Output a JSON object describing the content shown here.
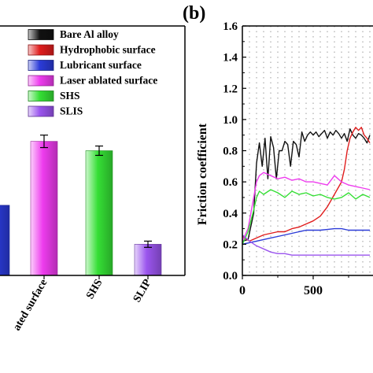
{
  "panel_label": "(b)",
  "chart_data": [
    {
      "type": "bar",
      "title": "",
      "xlabel": "",
      "ylabel": "",
      "categories": [
        "Lubricant surface",
        "Laser ablated surface",
        "SHS",
        "SLIP"
      ],
      "category_tick_labels": [
        "",
        "ated surface",
        "SHS",
        "SLIP"
      ],
      "values": [
        0.45,
        0.86,
        0.8,
        0.2
      ],
      "errors": [
        0,
        0.04,
        0.03,
        0.02
      ],
      "bar_colors": [
        "#2b3bd8",
        "#ee3cee",
        "#35df35",
        "#9b55ee"
      ],
      "ylim": [
        0,
        1.6
      ],
      "legend": {
        "placement": "top-right",
        "entries": [
          {
            "name": "Bare Al alloy",
            "color": "#111111"
          },
          {
            "name": "Hydrophobic surface",
            "color": "#e01d1d"
          },
          {
            "name": "Lubricant surface",
            "color": "#2b3bd8"
          },
          {
            "name": "Laser ablated surface",
            "color": "#ee3cee"
          },
          {
            "name": "SHS",
            "color": "#35df35"
          },
          {
            "name": "SLIS",
            "color": "#9b55ee"
          }
        ]
      }
    },
    {
      "type": "line",
      "title": "",
      "xlabel": "",
      "ylabel": "Friction coefficient",
      "xlim": [
        0,
        900
      ],
      "ylim": [
        0,
        1.6
      ],
      "xticks": [
        0,
        500
      ],
      "yticks": [
        0.0,
        0.2,
        0.4,
        0.6,
        0.8,
        1.0,
        1.2,
        1.4,
        1.6
      ],
      "grid": "vertical dotted",
      "series": [
        {
          "name": "Bare Al alloy",
          "color": "#111111",
          "x": [
            0,
            40,
            80,
            100,
            120,
            140,
            160,
            180,
            200,
            220,
            240,
            260,
            280,
            300,
            320,
            340,
            360,
            380,
            400,
            420,
            440,
            460,
            480,
            500,
            520,
            540,
            560,
            580,
            600,
            620,
            640,
            660,
            680,
            700,
            720,
            740,
            760,
            780,
            800,
            820,
            840,
            860,
            880,
            900
          ],
          "y": [
            0.22,
            0.23,
            0.4,
            0.72,
            0.85,
            0.7,
            0.88,
            0.62,
            0.89,
            0.82,
            0.62,
            0.8,
            0.8,
            0.86,
            0.84,
            0.7,
            0.86,
            0.84,
            0.76,
            0.92,
            0.86,
            0.9,
            0.92,
            0.9,
            0.92,
            0.89,
            0.91,
            0.93,
            0.88,
            0.92,
            0.9,
            0.93,
            0.91,
            0.88,
            0.91,
            0.86,
            0.94,
            0.9,
            0.88,
            0.91,
            0.9,
            0.88,
            0.85,
            0.9
          ]
        },
        {
          "name": "Hydrophobic surface",
          "color": "#e01d1d",
          "x": [
            0,
            50,
            100,
            150,
            200,
            250,
            300,
            350,
            400,
            450,
            500,
            550,
            600,
            650,
            700,
            720,
            740,
            760,
            780,
            800,
            820,
            840,
            860,
            880,
            900
          ],
          "y": [
            0.25,
            0.22,
            0.24,
            0.26,
            0.27,
            0.28,
            0.28,
            0.3,
            0.31,
            0.33,
            0.35,
            0.38,
            0.44,
            0.52,
            0.6,
            0.68,
            0.8,
            0.88,
            0.92,
            0.95,
            0.93,
            0.95,
            0.9,
            0.88,
            0.85
          ]
        },
        {
          "name": "Lubricant surface",
          "color": "#2b3bd8",
          "x": [
            0,
            50,
            100,
            150,
            200,
            250,
            300,
            350,
            400,
            450,
            500,
            550,
            600,
            650,
            700,
            750,
            800,
            850,
            900
          ],
          "y": [
            0.2,
            0.21,
            0.22,
            0.23,
            0.24,
            0.25,
            0.26,
            0.27,
            0.28,
            0.29,
            0.29,
            0.29,
            0.295,
            0.3,
            0.3,
            0.29,
            0.29,
            0.29,
            0.29
          ]
        },
        {
          "name": "Laser ablated surface",
          "color": "#ee3cee",
          "x": [
            0,
            40,
            80,
            100,
            120,
            150,
            200,
            250,
            300,
            350,
            400,
            450,
            500,
            550,
            600,
            650,
            700,
            750,
            800,
            850,
            900
          ],
          "y": [
            0.22,
            0.3,
            0.5,
            0.6,
            0.64,
            0.66,
            0.64,
            0.62,
            0.63,
            0.61,
            0.62,
            0.6,
            0.6,
            0.59,
            0.58,
            0.64,
            0.6,
            0.58,
            0.57,
            0.56,
            0.55
          ]
        },
        {
          "name": "SHS",
          "color": "#35df35",
          "x": [
            0,
            40,
            80,
            100,
            120,
            150,
            200,
            250,
            300,
            350,
            400,
            450,
            500,
            550,
            600,
            650,
            700,
            750,
            800,
            850,
            900
          ],
          "y": [
            0.2,
            0.28,
            0.42,
            0.5,
            0.54,
            0.52,
            0.55,
            0.53,
            0.5,
            0.54,
            0.52,
            0.53,
            0.51,
            0.52,
            0.5,
            0.49,
            0.5,
            0.53,
            0.49,
            0.52,
            0.5
          ]
        },
        {
          "name": "SLIS",
          "color": "#9b55ee",
          "x": [
            0,
            50,
            100,
            150,
            200,
            250,
            300,
            350,
            400,
            500,
            600,
            700,
            800,
            900
          ],
          "y": [
            0.26,
            0.22,
            0.19,
            0.17,
            0.15,
            0.14,
            0.14,
            0.13,
            0.13,
            0.13,
            0.13,
            0.13,
            0.13,
            0.13
          ]
        }
      ]
    }
  ]
}
